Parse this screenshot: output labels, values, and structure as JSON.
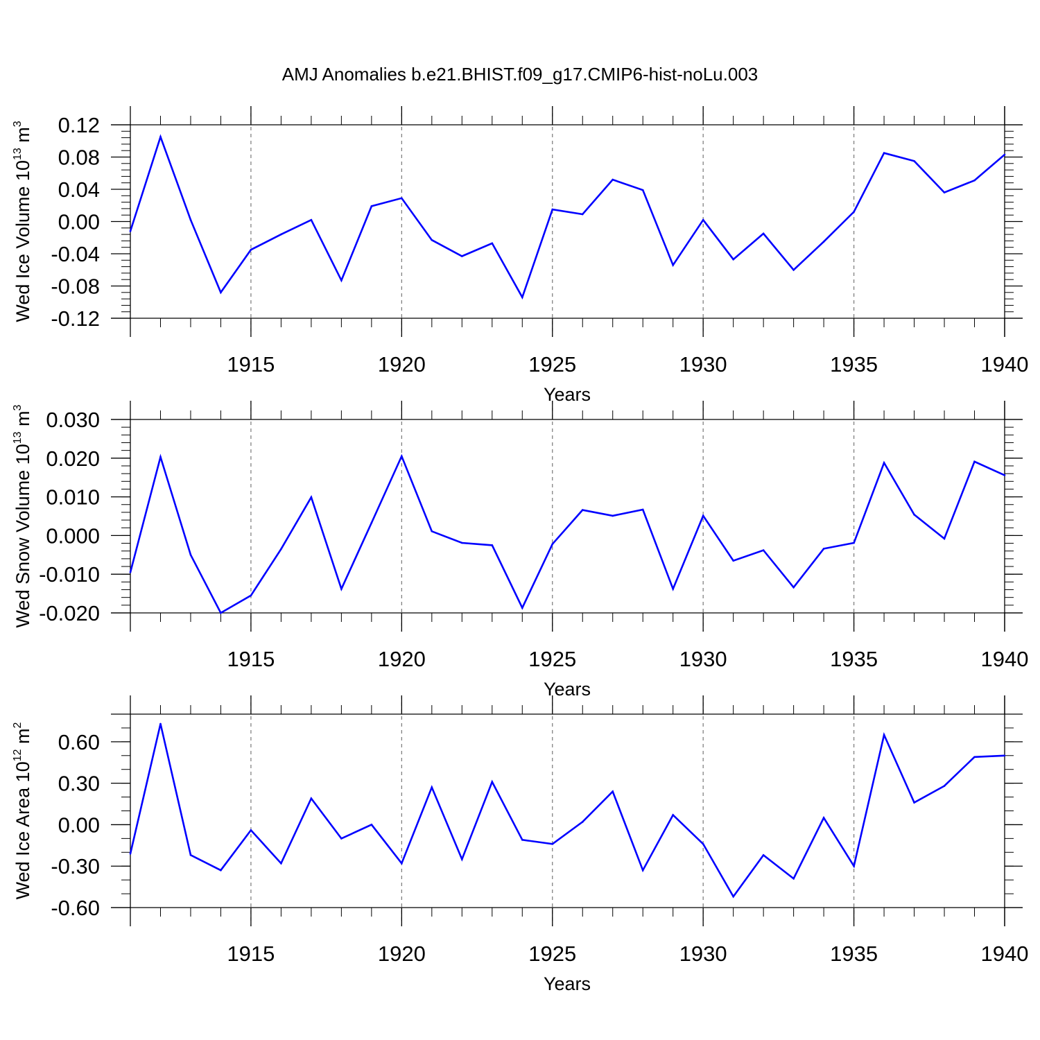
{
  "title": "AMJ Anomalies b.e21.BHIST.f09_g17.CMIP6-hist-noLu.003",
  "line_color": "#0000ff",
  "chart_data": [
    {
      "type": "line",
      "ylabel": {
        "text": "Wed Ice Volume 10",
        "exponent": "13",
        "unit": "m",
        "unit_exponent": "3"
      },
      "xlabel": "Years",
      "xlim": [
        1911,
        1940
      ],
      "ylim": [
        -0.12,
        0.12
      ],
      "yticks": [
        -0.12,
        -0.08,
        -0.04,
        0.0,
        0.04,
        0.08,
        0.12
      ],
      "ytick_labels": [
        "-0.12",
        "-0.08",
        "-0.04",
        "0.00",
        "0.04",
        "0.08",
        "0.12"
      ],
      "yminor_step": 0.008,
      "xticks": [
        1915,
        1920,
        1925,
        1930,
        1935,
        1940
      ],
      "xtick_labels": [
        "1915",
        "1920",
        "1925",
        "1930",
        "1935",
        "1940"
      ],
      "x": [
        1911,
        1912,
        1913,
        1914,
        1915,
        1916,
        1917,
        1918,
        1919,
        1920,
        1921,
        1922,
        1923,
        1924,
        1925,
        1926,
        1927,
        1928,
        1929,
        1930,
        1931,
        1932,
        1933,
        1934,
        1935,
        1936,
        1937,
        1938,
        1939,
        1940
      ],
      "values": [
        -0.012,
        0.105,
        0.002,
        -0.088,
        -0.035,
        -0.016,
        0.002,
        -0.073,
        0.019,
        0.029,
        -0.023,
        -0.043,
        -0.027,
        -0.094,
        0.015,
        0.009,
        0.052,
        0.039,
        -0.054,
        0.002,
        -0.047,
        -0.015,
        -0.06,
        -0.025,
        0.012,
        0.085,
        0.075,
        0.036,
        0.051,
        0.083
      ]
    },
    {
      "type": "line",
      "ylabel": {
        "text": "Wed Snow Volume 10",
        "exponent": "13",
        "unit": "m",
        "unit_exponent": "3"
      },
      "xlabel": "Years",
      "xlim": [
        1911,
        1940
      ],
      "ylim": [
        -0.02,
        0.03
      ],
      "yticks": [
        -0.02,
        -0.01,
        0.0,
        0.01,
        0.02,
        0.03
      ],
      "ytick_labels": [
        "-0.020",
        "-0.010",
        "0.000",
        "0.010",
        "0.020",
        "0.030"
      ],
      "yminor_step": 0.002,
      "xticks": [
        1915,
        1920,
        1925,
        1930,
        1935,
        1940
      ],
      "xtick_labels": [
        "1915",
        "1920",
        "1925",
        "1930",
        "1935",
        "1940"
      ],
      "x": [
        1911,
        1912,
        1913,
        1914,
        1915,
        1916,
        1917,
        1918,
        1919,
        1920,
        1921,
        1922,
        1923,
        1924,
        1925,
        1926,
        1927,
        1928,
        1929,
        1930,
        1931,
        1932,
        1933,
        1934,
        1935,
        1936,
        1937,
        1938,
        1939,
        1940
      ],
      "values": [
        -0.0095,
        0.0203,
        -0.005,
        -0.02,
        -0.0155,
        -0.0035,
        0.0099,
        -0.0138,
        0.0033,
        0.0205,
        0.0011,
        -0.0019,
        -0.0025,
        -0.0187,
        -0.0022,
        0.0066,
        0.0051,
        0.0067,
        -0.0138,
        0.0051,
        -0.0065,
        -0.0038,
        -0.0134,
        -0.0034,
        -0.0019,
        0.0188,
        0.0054,
        -0.0008,
        0.0191,
        0.0156
      ]
    },
    {
      "type": "line",
      "ylabel": {
        "text": "Wed Ice Area 10",
        "exponent": "12",
        "unit": "m",
        "unit_exponent": "2"
      },
      "xlabel": "Years",
      "xlim": [
        1911,
        1940
      ],
      "ylim": [
        -0.6,
        0.8
      ],
      "yticks": [
        -0.6,
        -0.3,
        0.0,
        0.3,
        0.6
      ],
      "ytick_labels": [
        "-0.60",
        "-0.30",
        "0.00",
        "0.30",
        "0.60"
      ],
      "yminor_step": 0.1,
      "xticks": [
        1915,
        1920,
        1925,
        1930,
        1935,
        1940
      ],
      "xtick_labels": [
        "1915",
        "1920",
        "1925",
        "1930",
        "1935",
        "1940"
      ],
      "x": [
        1911,
        1912,
        1913,
        1914,
        1915,
        1916,
        1917,
        1918,
        1919,
        1920,
        1921,
        1922,
        1923,
        1924,
        1925,
        1926,
        1927,
        1928,
        1929,
        1930,
        1931,
        1932,
        1933,
        1934,
        1935,
        1936,
        1937,
        1938,
        1939,
        1940
      ],
      "values": [
        -0.21,
        0.73,
        -0.22,
        -0.33,
        -0.04,
        -0.28,
        0.19,
        -0.1,
        0.0,
        -0.28,
        0.27,
        -0.25,
        0.31,
        -0.11,
        -0.14,
        0.02,
        0.24,
        -0.33,
        0.07,
        -0.14,
        -0.52,
        -0.22,
        -0.39,
        0.05,
        -0.3,
        0.65,
        0.16,
        0.28,
        0.49,
        0.5
      ]
    }
  ]
}
